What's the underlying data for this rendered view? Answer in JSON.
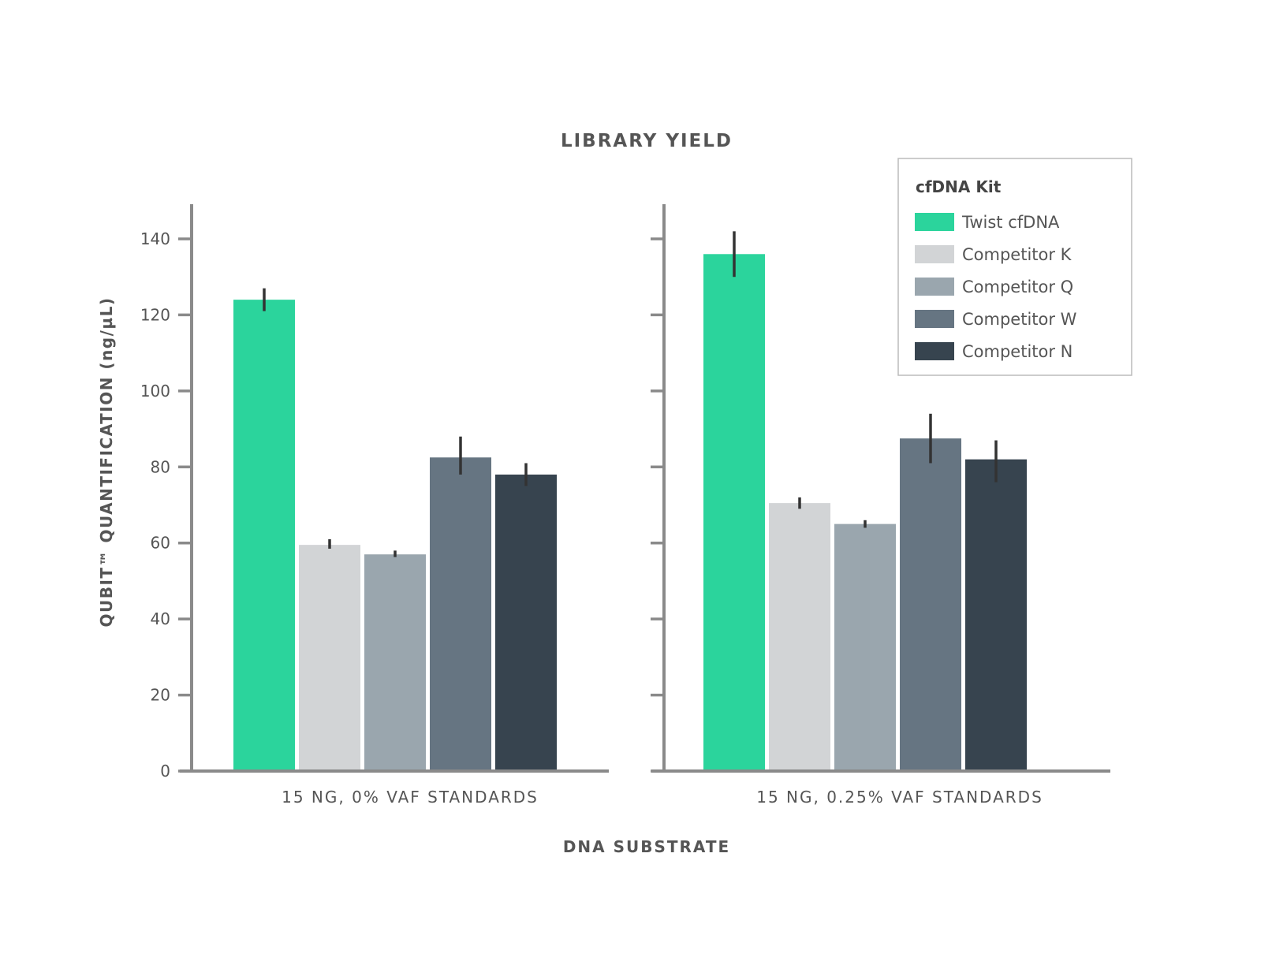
{
  "chart_data": {
    "type": "bar",
    "title": "LIBRARY YIELD",
    "xlabel": "DNA SUBSTRATE",
    "ylabel": "QUBIT™ QUANTIFICATION (ng/µL)",
    "ylim": [
      0,
      150
    ],
    "yticks": [
      0,
      20,
      40,
      60,
      80,
      100,
      120,
      140
    ],
    "grid": false,
    "categories": [
      "15 NG, 0% VAF STANDARDS",
      "15 NG, 0.25% VAF STANDARDS"
    ],
    "legend": {
      "title": "cfDNA Kit",
      "placement": "top-right"
    },
    "series": [
      {
        "name": "Twist cfDNA",
        "color": "#2bd49c",
        "values": [
          124,
          136
        ],
        "error_low": [
          121,
          130
        ],
        "error_high": [
          127,
          142
        ]
      },
      {
        "name": "Competitor K",
        "color": "#d2d4d6",
        "values": [
          59.5,
          70.5
        ],
        "error_low": [
          58.5,
          69
        ],
        "error_high": [
          61,
          72
        ]
      },
      {
        "name": "Competitor Q",
        "color": "#9aa6ae",
        "values": [
          57,
          65
        ],
        "error_low": [
          56.3,
          64
        ],
        "error_high": [
          58,
          66
        ]
      },
      {
        "name": "Competitor W",
        "color": "#667582",
        "values": [
          82.5,
          87.5
        ],
        "error_low": [
          78,
          81
        ],
        "error_high": [
          88,
          94
        ]
      },
      {
        "name": "Competitor N",
        "color": "#37444f",
        "values": [
          78,
          82
        ],
        "error_low": [
          75,
          76
        ],
        "error_high": [
          81,
          87
        ]
      }
    ]
  }
}
